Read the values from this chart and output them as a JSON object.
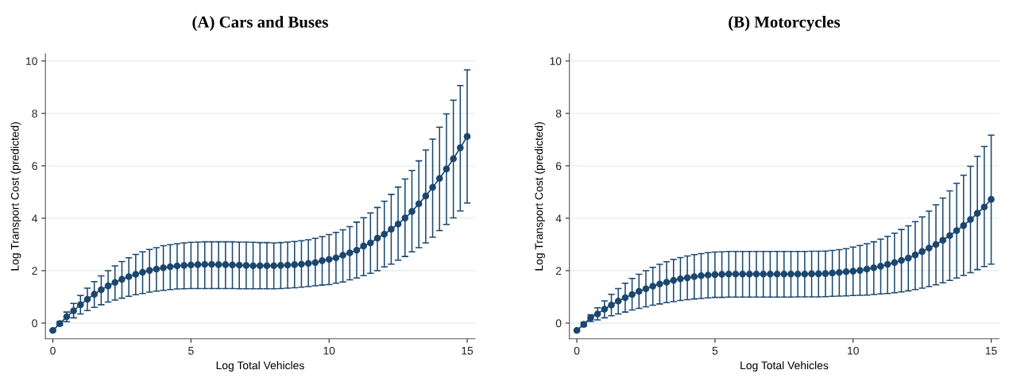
{
  "chart_data": [
    {
      "type": "line",
      "title": "(A) Cars and Buses",
      "xlabel": "Log Total Vehicles",
      "ylabel": "Log Transport Cost (predicted)",
      "xlim": [
        -0.27,
        15.28
      ],
      "ylim": [
        -0.6,
        10.27
      ],
      "xticks": [
        0,
        5,
        10,
        15
      ],
      "yticks": [
        0,
        2,
        4,
        6,
        8,
        10
      ],
      "grid": "y",
      "marker": "circle",
      "line_style": "solid",
      "x": [
        0,
        0.25,
        0.5,
        0.75,
        1,
        1.25,
        1.5,
        1.75,
        2,
        2.25,
        2.5,
        2.75,
        3,
        3.25,
        3.5,
        3.75,
        4,
        4.25,
        4.5,
        4.75,
        5,
        5.25,
        5.5,
        5.75,
        6,
        6.25,
        6.5,
        6.75,
        7,
        7.25,
        7.5,
        7.75,
        8,
        8.25,
        8.5,
        8.75,
        9,
        9.25,
        9.5,
        9.75,
        10,
        10.25,
        10.5,
        10.75,
        11,
        11.25,
        11.5,
        11.75,
        12,
        12.25,
        12.5,
        12.75,
        13,
        13.25,
        13.5,
        13.75,
        14,
        14.25,
        14.5,
        14.75,
        15
      ],
      "series": [
        {
          "color": "#1a476f",
          "values": [
            -0.28,
            -0.02,
            0.24,
            0.47,
            0.7,
            0.91,
            1.1,
            1.27,
            1.42,
            1.55,
            1.67,
            1.77,
            1.86,
            1.94,
            2.01,
            2.06,
            2.11,
            2.15,
            2.18,
            2.2,
            2.22,
            2.23,
            2.24,
            2.24,
            2.23,
            2.23,
            2.22,
            2.21,
            2.2,
            2.19,
            2.19,
            2.19,
            2.19,
            2.2,
            2.21,
            2.23,
            2.25,
            2.28,
            2.31,
            2.38,
            2.43,
            2.49,
            2.59,
            2.68,
            2.78,
            2.94,
            3.06,
            3.24,
            3.39,
            3.58,
            3.78,
            4.01,
            4.26,
            4.55,
            4.85,
            5.18,
            5.52,
            5.88,
            6.27,
            6.69,
            7.12
          ],
          "errors": [
            [
              -0.31,
              -0.25
            ],
            [
              -0.1,
              0.06
            ],
            [
              0.05,
              0.42
            ],
            [
              0.2,
              0.75
            ],
            [
              0.35,
              1.05
            ],
            [
              0.48,
              1.33
            ],
            [
              0.6,
              1.58
            ],
            [
              0.7,
              1.8
            ],
            [
              0.8,
              2.0
            ],
            [
              0.88,
              2.18
            ],
            [
              0.95,
              2.35
            ],
            [
              1.02,
              2.49
            ],
            [
              1.08,
              2.62
            ],
            [
              1.13,
              2.72
            ],
            [
              1.18,
              2.81
            ],
            [
              1.22,
              2.88
            ],
            [
              1.25,
              2.95
            ],
            [
              1.28,
              2.99
            ],
            [
              1.3,
              3.03
            ],
            [
              1.31,
              3.06
            ],
            [
              1.32,
              3.08
            ],
            [
              1.32,
              3.09
            ],
            [
              1.32,
              3.1
            ],
            [
              1.32,
              3.1
            ],
            [
              1.32,
              3.1
            ],
            [
              1.32,
              3.1
            ],
            [
              1.32,
              3.1
            ],
            [
              1.31,
              3.09
            ],
            [
              1.31,
              3.09
            ],
            [
              1.31,
              3.08
            ],
            [
              1.31,
              3.07
            ],
            [
              1.31,
              3.07
            ],
            [
              1.31,
              3.06
            ],
            [
              1.32,
              3.07
            ],
            [
              1.33,
              3.09
            ],
            [
              1.35,
              3.11
            ],
            [
              1.37,
              3.14
            ],
            [
              1.39,
              3.18
            ],
            [
              1.42,
              3.23
            ],
            [
              1.45,
              3.3
            ],
            [
              1.47,
              3.38
            ],
            [
              1.52,
              3.46
            ],
            [
              1.57,
              3.56
            ],
            [
              1.65,
              3.68
            ],
            [
              1.72,
              3.85
            ],
            [
              1.81,
              4.02
            ],
            [
              1.9,
              4.2
            ],
            [
              2.0,
              4.41
            ],
            [
              2.14,
              4.65
            ],
            [
              2.25,
              4.91
            ],
            [
              2.4,
              5.19
            ],
            [
              2.54,
              5.5
            ],
            [
              2.72,
              5.82
            ],
            [
              2.88,
              6.19
            ],
            [
              3.06,
              6.6
            ],
            [
              3.28,
              7.02
            ],
            [
              3.53,
              7.47
            ],
            [
              3.76,
              7.98
            ],
            [
              4.01,
              8.5
            ],
            [
              4.28,
              9.06
            ],
            [
              4.58,
              9.66
            ]
          ]
        }
      ]
    },
    {
      "type": "line",
      "title": "(B) Motorcycles",
      "xlabel": "Log Total Vehicles",
      "ylabel": "Log Transport Cost (predicted)",
      "xlim": [
        -0.27,
        15.28
      ],
      "ylim": [
        -0.6,
        10.27
      ],
      "xticks": [
        0,
        5,
        10,
        15
      ],
      "yticks": [
        0,
        2,
        4,
        6,
        8,
        10
      ],
      "grid": "y",
      "marker": "circle",
      "line_style": "solid",
      "x": [
        0,
        0.25,
        0.5,
        0.75,
        1,
        1.25,
        1.5,
        1.75,
        2,
        2.25,
        2.5,
        2.75,
        3,
        3.25,
        3.5,
        3.75,
        4,
        4.25,
        4.5,
        4.75,
        5,
        5.25,
        5.5,
        5.75,
        6,
        6.25,
        6.5,
        6.75,
        7,
        7.25,
        7.5,
        7.75,
        8,
        8.25,
        8.5,
        8.75,
        9,
        9.25,
        9.5,
        9.75,
        10,
        10.25,
        10.5,
        10.75,
        11,
        11.25,
        11.5,
        11.75,
        12,
        12.25,
        12.5,
        12.75,
        13,
        13.25,
        13.5,
        13.75,
        14,
        14.25,
        14.5,
        14.75,
        15
      ],
      "series": [
        {
          "color": "#1a476f",
          "values": [
            -0.28,
            -0.05,
            0.2,
            0.35,
            0.53,
            0.69,
            0.84,
            0.97,
            1.09,
            1.21,
            1.31,
            1.41,
            1.49,
            1.56,
            1.63,
            1.69,
            1.73,
            1.77,
            1.81,
            1.83,
            1.85,
            1.86,
            1.87,
            1.87,
            1.87,
            1.87,
            1.87,
            1.87,
            1.87,
            1.87,
            1.87,
            1.87,
            1.87,
            1.87,
            1.88,
            1.88,
            1.89,
            1.91,
            1.93,
            1.96,
            1.98,
            2.01,
            2.06,
            2.11,
            2.17,
            2.24,
            2.31,
            2.39,
            2.48,
            2.6,
            2.73,
            2.86,
            3.0,
            3.16,
            3.34,
            3.53,
            3.72,
            3.95,
            4.19,
            4.43,
            4.72
          ],
          "errors": [
            [
              -0.31,
              -0.25
            ],
            [
              -0.12,
              0.03
            ],
            [
              0.06,
              0.32
            ],
            [
              0.12,
              0.58
            ],
            [
              0.2,
              0.85
            ],
            [
              0.28,
              1.1
            ],
            [
              0.35,
              1.32
            ],
            [
              0.42,
              1.52
            ],
            [
              0.5,
              1.7
            ],
            [
              0.56,
              1.86
            ],
            [
              0.62,
              2.0
            ],
            [
              0.68,
              2.13
            ],
            [
              0.73,
              2.24
            ],
            [
              0.78,
              2.34
            ],
            [
              0.82,
              2.43
            ],
            [
              0.86,
              2.5
            ],
            [
              0.89,
              2.56
            ],
            [
              0.92,
              2.61
            ],
            [
              0.94,
              2.65
            ],
            [
              0.96,
              2.69
            ],
            [
              0.98,
              2.71
            ],
            [
              0.98,
              2.72
            ],
            [
              0.99,
              2.73
            ],
            [
              0.99,
              2.73
            ],
            [
              0.99,
              2.73
            ],
            [
              0.99,
              2.73
            ],
            [
              0.99,
              2.73
            ],
            [
              0.99,
              2.73
            ],
            [
              0.99,
              2.73
            ],
            [
              0.99,
              2.73
            ],
            [
              0.99,
              2.73
            ],
            [
              0.99,
              2.73
            ],
            [
              1.0,
              2.73
            ],
            [
              1.0,
              2.73
            ],
            [
              1.0,
              2.74
            ],
            [
              1.0,
              2.74
            ],
            [
              1.01,
              2.75
            ],
            [
              1.02,
              2.77
            ],
            [
              1.03,
              2.8
            ],
            [
              1.04,
              2.84
            ],
            [
              1.05,
              2.9
            ],
            [
              1.06,
              2.96
            ],
            [
              1.07,
              3.03
            ],
            [
              1.09,
              3.1
            ],
            [
              1.11,
              3.2
            ],
            [
              1.13,
              3.31
            ],
            [
              1.16,
              3.43
            ],
            [
              1.19,
              3.57
            ],
            [
              1.23,
              3.71
            ],
            [
              1.28,
              3.87
            ],
            [
              1.33,
              4.05
            ],
            [
              1.39,
              4.27
            ],
            [
              1.46,
              4.51
            ],
            [
              1.54,
              4.77
            ],
            [
              1.63,
              5.04
            ],
            [
              1.72,
              5.33
            ],
            [
              1.82,
              5.64
            ],
            [
              1.92,
              5.98
            ],
            [
              2.04,
              6.36
            ],
            [
              2.16,
              6.74
            ],
            [
              2.25,
              7.17
            ]
          ]
        }
      ]
    }
  ]
}
